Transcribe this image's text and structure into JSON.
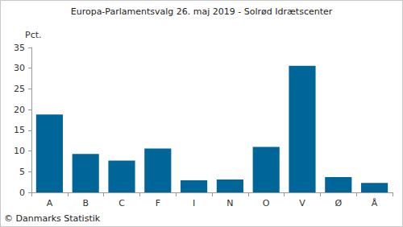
{
  "chart_data": {
    "type": "bar",
    "title": "Europa-Parlamentsvalg 26. maj 2019 - Solrød Idrætscenter",
    "ylabel": "Pct.",
    "annotation": "© Danmarks Statistik",
    "categories": [
      "A",
      "B",
      "C",
      "F",
      "I",
      "N",
      "O",
      "V",
      "Ø",
      "Å"
    ],
    "values": [
      18.8,
      9.3,
      7.7,
      10.6,
      2.9,
      3.1,
      11.0,
      30.6,
      3.7,
      2.3
    ],
    "color": "#006699",
    "ylim": [
      0,
      35
    ],
    "yticks": [
      0,
      5,
      10,
      15,
      20,
      25,
      30,
      35
    ],
    "grid": false
  }
}
